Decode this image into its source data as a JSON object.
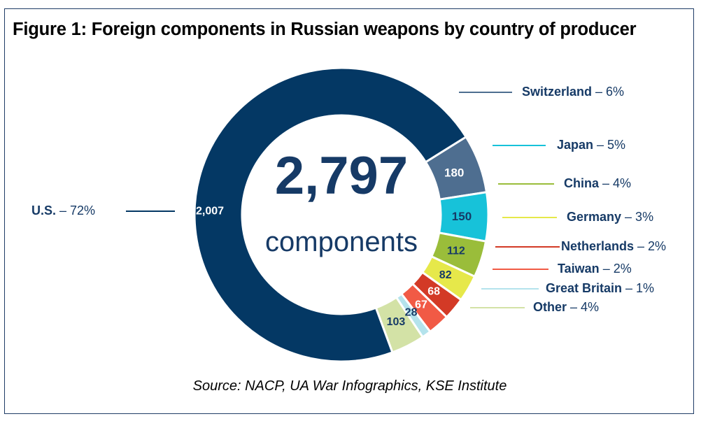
{
  "chart_data": {
    "type": "donut",
    "title": "Figure 1: Foreign components in Russian weapons by country of producer",
    "center_value": "2,797",
    "center_label": "components",
    "source": "Source: NACP, UA War Infographics, KSE Institute",
    "segments": [
      {
        "name": "Switzerland",
        "value": 180,
        "value_label": "180",
        "percent": "6%",
        "color": "#4e6e90"
      },
      {
        "name": "Japan",
        "value": 150,
        "value_label": "150",
        "percent": "5%",
        "color": "#17c2d9"
      },
      {
        "name": "China",
        "value": 112,
        "value_label": "112",
        "percent": "4%",
        "color": "#9abd3a"
      },
      {
        "name": "Germany",
        "value": 82,
        "value_label": "82",
        "percent": "3%",
        "color": "#e6e84a"
      },
      {
        "name": "Netherlands",
        "value": 68,
        "value_label": "68",
        "percent": "2%",
        "color": "#d33a26"
      },
      {
        "name": "Taiwan",
        "value": 67,
        "value_label": "67",
        "percent": "2%",
        "color": "#f15a45"
      },
      {
        "name": "Great Britain",
        "value": 28,
        "value_label": "28",
        "percent": "1%",
        "color": "#b4e3ec"
      },
      {
        "name": "Other",
        "value": 103,
        "value_label": "103",
        "percent": "4%",
        "color": "#d3e2a6"
      },
      {
        "name": "U.S.",
        "value": 2007,
        "value_label": "2,007",
        "percent": "72%",
        "color": "#043864"
      }
    ],
    "legend_separator": "–"
  }
}
